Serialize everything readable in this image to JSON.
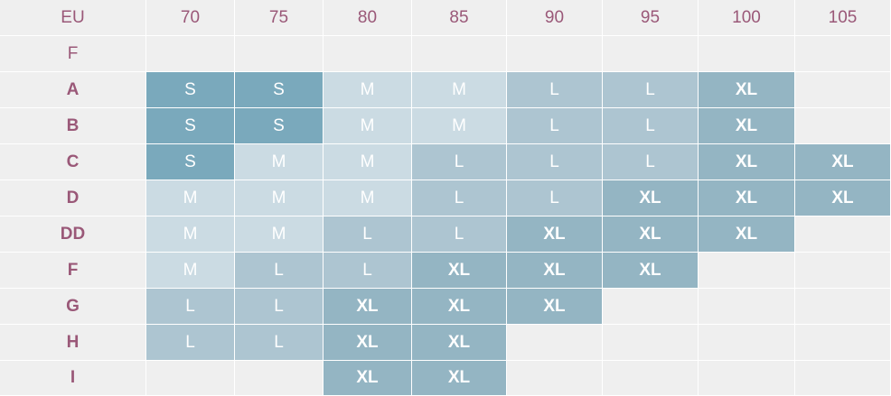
{
  "chart_data": {
    "type": "table",
    "corner_label": "EU",
    "columns": [
      "70",
      "75",
      "80",
      "85",
      "90",
      "95",
      "100",
      "105"
    ],
    "rows": [
      {
        "label": "F",
        "values": [
          "",
          "",
          "",
          "",
          "",
          "",
          "",
          ""
        ]
      },
      {
        "label": "A",
        "values": [
          "S",
          "S",
          "M",
          "M",
          "L",
          "L",
          "XL",
          ""
        ]
      },
      {
        "label": "B",
        "values": [
          "S",
          "S",
          "M",
          "M",
          "L",
          "L",
          "XL",
          ""
        ]
      },
      {
        "label": "C",
        "values": [
          "S",
          "M",
          "M",
          "L",
          "L",
          "L",
          "XL",
          "XL"
        ]
      },
      {
        "label": "D",
        "values": [
          "M",
          "M",
          "M",
          "L",
          "L",
          "XL",
          "XL",
          "XL"
        ]
      },
      {
        "label": "DD",
        "values": [
          "M",
          "M",
          "L",
          "L",
          "XL",
          "XL",
          "XL",
          ""
        ]
      },
      {
        "label": "F",
        "values": [
          "M",
          "L",
          "L",
          "XL",
          "XL",
          "XL",
          "",
          ""
        ]
      },
      {
        "label": "G",
        "values": [
          "L",
          "L",
          "XL",
          "XL",
          "XL",
          "",
          "",
          ""
        ]
      },
      {
        "label": "H",
        "values": [
          "L",
          "L",
          "XL",
          "XL",
          "",
          "",
          "",
          ""
        ]
      },
      {
        "label": "I",
        "values": [
          "",
          "",
          "XL",
          "XL",
          "",
          "",
          "",
          ""
        ]
      }
    ],
    "size_colors": {
      "S": "#7aa9bc",
      "M": "#cbdbe3",
      "L": "#adc5d1",
      "XL": "#94b5c3"
    },
    "empty_color": "#efefef",
    "header_text_color": "#9a5878"
  }
}
